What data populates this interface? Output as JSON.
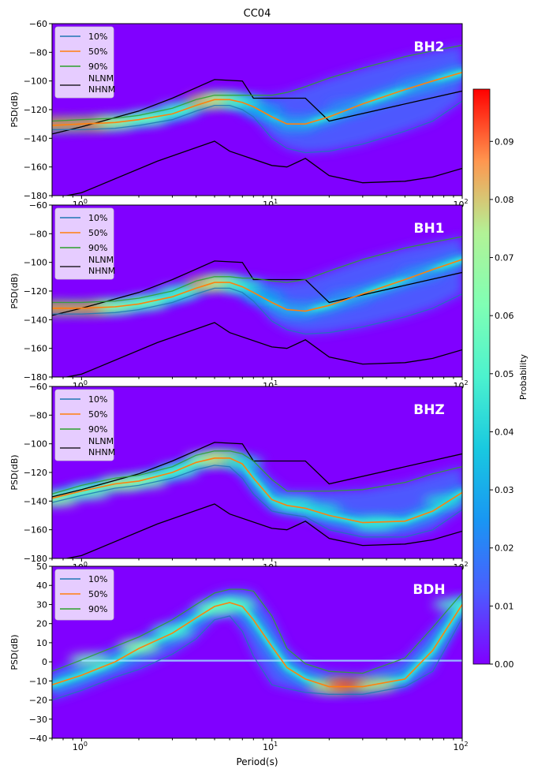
{
  "figure_title": "CC04",
  "colorbar": {
    "label": "Probability",
    "ticks": [
      0.0,
      0.01,
      0.02,
      0.03,
      0.04,
      0.05,
      0.06,
      0.07,
      0.08,
      0.09
    ],
    "tick_labels": [
      "0.00",
      "0.01",
      "0.02",
      "0.03",
      "0.04",
      "0.05",
      "0.06",
      "0.07",
      "0.08",
      "0.09"
    ],
    "range": [
      0,
      0.099
    ],
    "colormap": "rainbow"
  },
  "colors": {
    "p10": "#1f77b4",
    "p50": "#ff7f0e",
    "p90": "#2ca02c",
    "model": "#000000",
    "background": "#8000ff"
  },
  "chart_data": [
    {
      "type": "line",
      "channel": "BH2",
      "ylabel": "PSD(dB)",
      "xlabel": "",
      "xscale": "log",
      "xlim": [
        0.7,
        100
      ],
      "ylim": [
        -180,
        -60
      ],
      "yticks": [
        -180,
        -160,
        -140,
        -120,
        -100,
        -80,
        -60
      ],
      "xtick_labels": [
        "10^0",
        "10^1",
        "10^2"
      ],
      "legend": [
        "10%",
        "50%",
        "90%",
        "NLNM",
        "NHNM"
      ],
      "legend_loc": "top-left",
      "series": [
        {
          "name": "10%",
          "x": [
            0.7,
            1,
            1.5,
            2,
            3,
            4,
            5,
            6,
            7,
            8,
            10,
            12,
            15,
            20,
            30,
            50,
            70,
            100
          ],
          "y": [
            -134,
            -134,
            -133,
            -131,
            -127,
            -121,
            -117,
            -117,
            -120,
            -125,
            -140,
            -147,
            -150,
            -149,
            -144,
            -135,
            -128,
            -114
          ]
        },
        {
          "name": "50%",
          "x": [
            0.7,
            1,
            1.5,
            2,
            3,
            4,
            5,
            6,
            7,
            8,
            10,
            12,
            15,
            20,
            30,
            50,
            70,
            100
          ],
          "y": [
            -131,
            -130,
            -129,
            -127,
            -123,
            -117,
            -113,
            -113,
            -115,
            -118,
            -125,
            -130,
            -130,
            -125,
            -116,
            -106,
            -100,
            -94
          ]
        },
        {
          "name": "90%",
          "x": [
            0.7,
            1,
            1.5,
            2,
            3,
            4,
            5,
            6,
            7,
            8,
            10,
            12,
            15,
            20,
            30,
            50,
            70,
            100
          ],
          "y": [
            -128,
            -127,
            -126,
            -124,
            -119,
            -113,
            -110,
            -110,
            -110,
            -110,
            -110,
            -108,
            -104,
            -98,
            -91,
            -83,
            -79,
            -75
          ]
        }
      ],
      "density": [
        {
          "x": 0.75,
          "y": -130,
          "p": 0.09
        },
        {
          "x": 1.1,
          "y": -130,
          "p": 0.09
        },
        {
          "x": 1.5,
          "y": -129,
          "p": 0.075
        },
        {
          "x": 2.2,
          "y": -126,
          "p": 0.06
        },
        {
          "x": 3.2,
          "y": -120,
          "p": 0.05
        },
        {
          "x": 4.5,
          "y": -114,
          "p": 0.085
        },
        {
          "x": 5.5,
          "y": -113,
          "p": 0.075
        },
        {
          "x": 7.0,
          "y": -115,
          "p": 0.045
        },
        {
          "x": 9.0,
          "y": -121,
          "p": 0.025
        },
        {
          "x": 13,
          "y": -130,
          "p": 0.02
        },
        {
          "x": 25,
          "y": -118,
          "p": 0.02
        },
        {
          "x": 60,
          "y": -103,
          "p": 0.02
        }
      ]
    },
    {
      "type": "line",
      "channel": "BH1",
      "ylabel": "PSD(dB)",
      "xlabel": "",
      "xscale": "log",
      "xlim": [
        0.7,
        100
      ],
      "ylim": [
        -180,
        -60
      ],
      "yticks": [
        -180,
        -160,
        -140,
        -120,
        -100,
        -80,
        -60
      ],
      "xtick_labels": [
        "10^0",
        "10^1",
        "10^2"
      ],
      "legend": [
        "10%",
        "50%",
        "90%",
        "NLNM",
        "NHNM"
      ],
      "legend_loc": "top-left",
      "series": [
        {
          "name": "10%",
          "x": [
            0.7,
            1,
            1.5,
            2,
            3,
            4,
            5,
            6,
            7,
            8,
            10,
            12,
            15,
            20,
            30,
            50,
            70,
            100
          ],
          "y": [
            -136,
            -136,
            -135,
            -133,
            -128,
            -122,
            -118,
            -118,
            -121,
            -127,
            -141,
            -147,
            -150,
            -149,
            -145,
            -138,
            -132,
            -122
          ]
        },
        {
          "name": "50%",
          "x": [
            0.7,
            1,
            1.5,
            2,
            3,
            4,
            5,
            6,
            7,
            8,
            10,
            12,
            15,
            20,
            30,
            50,
            70,
            100
          ],
          "y": [
            -132,
            -132,
            -131,
            -129,
            -124,
            -118,
            -114,
            -114,
            -117,
            -121,
            -128,
            -133,
            -134,
            -130,
            -122,
            -112,
            -105,
            -98
          ]
        },
        {
          "name": "90%",
          "x": [
            0.7,
            1,
            1.5,
            2,
            3,
            4,
            5,
            6,
            7,
            8,
            10,
            12,
            15,
            20,
            30,
            50,
            70,
            100
          ],
          "y": [
            -128,
            -128,
            -127,
            -125,
            -120,
            -113,
            -110,
            -110,
            -111,
            -111,
            -113,
            -114,
            -112,
            -106,
            -98,
            -90,
            -86,
            -82
          ]
        }
      ],
      "density": [
        {
          "x": 0.75,
          "y": -132,
          "p": 0.09
        },
        {
          "x": 1.1,
          "y": -132,
          "p": 0.09
        },
        {
          "x": 1.5,
          "y": -131,
          "p": 0.07
        },
        {
          "x": 2.2,
          "y": -128,
          "p": 0.06
        },
        {
          "x": 3.2,
          "y": -121,
          "p": 0.05
        },
        {
          "x": 4.5,
          "y": -115,
          "p": 0.085
        },
        {
          "x": 5.5,
          "y": -114,
          "p": 0.075
        },
        {
          "x": 7.0,
          "y": -117,
          "p": 0.045
        },
        {
          "x": 9.0,
          "y": -124,
          "p": 0.025
        },
        {
          "x": 13,
          "y": -133,
          "p": 0.02
        },
        {
          "x": 25,
          "y": -124,
          "p": 0.02
        },
        {
          "x": 60,
          "y": -108,
          "p": 0.02
        }
      ]
    },
    {
      "type": "line",
      "channel": "BHZ",
      "ylabel": "PSD(dB)",
      "xlabel": "",
      "xscale": "log",
      "xlim": [
        0.7,
        100
      ],
      "ylim": [
        -180,
        -60
      ],
      "yticks": [
        -180,
        -160,
        -140,
        -120,
        -100,
        -80,
        -60
      ],
      "xtick_labels": [
        "10^0",
        "10^1",
        "10^2"
      ],
      "legend": [
        "10%",
        "50%",
        "90%",
        "NLNM",
        "NHNM"
      ],
      "legend_loc": "top-left",
      "series": [
        {
          "name": "10%",
          "x": [
            0.7,
            1,
            1.5,
            2,
            3,
            4,
            5,
            6,
            7,
            8,
            10,
            12,
            15,
            20,
            30,
            50,
            70,
            100
          ],
          "y": [
            -141,
            -136,
            -131,
            -129,
            -124,
            -118,
            -115,
            -116,
            -124,
            -135,
            -147,
            -149,
            -151,
            -160,
            -165,
            -165,
            -160,
            -146
          ]
        },
        {
          "name": "50%",
          "x": [
            0.7,
            1,
            1.5,
            2,
            3,
            4,
            5,
            6,
            7,
            8,
            10,
            12,
            15,
            20,
            30,
            50,
            70,
            100
          ],
          "y": [
            -138,
            -133,
            -128,
            -126,
            -120,
            -113,
            -110,
            -110,
            -114,
            -124,
            -139,
            -143,
            -145,
            -150,
            -155,
            -154,
            -147,
            -134
          ]
        },
        {
          "name": "90%",
          "x": [
            0.7,
            1,
            1.5,
            2,
            3,
            4,
            5,
            6,
            7,
            8,
            10,
            12,
            15,
            20,
            30,
            50,
            70,
            100
          ],
          "y": [
            -135,
            -129,
            -124,
            -122,
            -116,
            -108,
            -105,
            -105,
            -107,
            -112,
            -125,
            -133,
            -133,
            -133,
            -132,
            -127,
            -121,
            -116
          ]
        }
      ],
      "density": [
        {
          "x": 0.75,
          "y": -139,
          "p": 0.07
        },
        {
          "x": 1.1,
          "y": -134,
          "p": 0.06
        },
        {
          "x": 1.6,
          "y": -128,
          "p": 0.075
        },
        {
          "x": 2.2,
          "y": -126,
          "p": 0.065
        },
        {
          "x": 3.2,
          "y": -119,
          "p": 0.05
        },
        {
          "x": 4.5,
          "y": -111,
          "p": 0.07
        },
        {
          "x": 5.5,
          "y": -110,
          "p": 0.08
        },
        {
          "x": 7.0,
          "y": -113,
          "p": 0.04
        },
        {
          "x": 13,
          "y": -142,
          "p": 0.045
        },
        {
          "x": 18,
          "y": -146,
          "p": 0.04
        },
        {
          "x": 35,
          "y": -156,
          "p": 0.045
        },
        {
          "x": 80,
          "y": -140,
          "p": 0.04
        }
      ]
    },
    {
      "type": "line",
      "channel": "BDH",
      "ylabel": "PSD(dB)",
      "xlabel": "Period(s)",
      "xscale": "log",
      "xlim": [
        0.7,
        100
      ],
      "ylim": [
        -40,
        50
      ],
      "yticks": [
        -40,
        -30,
        -20,
        -10,
        0,
        10,
        20,
        30,
        40,
        50
      ],
      "xtick_labels": [
        "10^0",
        "10^1",
        "10^2"
      ],
      "legend": [
        "10%",
        "50%",
        "90%"
      ],
      "legend_loc": "top-left",
      "series": [
        {
          "name": "10%",
          "x": [
            0.7,
            1,
            1.5,
            2,
            3,
            4,
            5,
            6,
            7,
            8,
            10,
            12,
            15,
            20,
            30,
            50,
            70,
            100
          ],
          "y": [
            -20,
            -15,
            -8,
            -4,
            4,
            12,
            22,
            24,
            16,
            3,
            -12,
            -14,
            -16,
            -17,
            -17,
            -13,
            -5,
            23
          ]
        },
        {
          "name": "50%",
          "x": [
            0.7,
            1,
            1.5,
            2,
            3,
            4,
            5,
            6,
            7,
            8,
            10,
            12,
            15,
            20,
            30,
            50,
            70,
            100
          ],
          "y": [
            -12,
            -7,
            0,
            7,
            15,
            23,
            29,
            31,
            29,
            22,
            8,
            -3,
            -9,
            -13,
            -13,
            -9,
            6,
            30
          ]
        },
        {
          "name": "90%",
          "x": [
            0.7,
            1,
            1.5,
            2,
            3,
            4,
            5,
            6,
            7,
            8,
            10,
            12,
            15,
            20,
            30,
            50,
            70,
            100
          ],
          "y": [
            -5,
            1,
            8,
            13,
            22,
            30,
            36,
            38,
            38,
            37,
            24,
            7,
            -1,
            -5,
            -6,
            2,
            18,
            36
          ]
        }
      ],
      "density": [
        {
          "x": 1.1,
          "y": 1,
          "p": 0.06
        },
        {
          "x": 2.0,
          "y": 8,
          "p": 0.07
        },
        {
          "x": 3.0,
          "y": 16,
          "p": 0.05
        },
        {
          "x": 5.0,
          "y": 28,
          "p": 0.06
        },
        {
          "x": 6.5,
          "y": 30,
          "p": 0.055
        },
        {
          "x": 20,
          "y": -13,
          "p": 0.08
        },
        {
          "x": 25,
          "y": -12,
          "p": 0.095
        },
        {
          "x": 35,
          "y": -12,
          "p": 0.08
        },
        {
          "x": 90,
          "y": 30,
          "p": 0.05
        }
      ]
    }
  ],
  "reference_models": {
    "NHNM": {
      "x": [
        0.7,
        1,
        2,
        3,
        5,
        7,
        8,
        10,
        15,
        20,
        100
      ],
      "y": [
        -137,
        -132,
        -121,
        -112,
        -99,
        -100,
        -112,
        -112,
        -112,
        -128,
        -107
      ]
    },
    "NLNM": {
      "x": [
        0.7,
        1,
        2.5,
        5,
        6,
        10,
        12,
        15,
        20,
        30,
        50,
        70,
        100
      ],
      "y": [
        -182,
        -178,
        -156,
        -142,
        -149,
        -159,
        -160,
        -154,
        -166,
        -171,
        -170,
        -167,
        -161
      ]
    }
  }
}
